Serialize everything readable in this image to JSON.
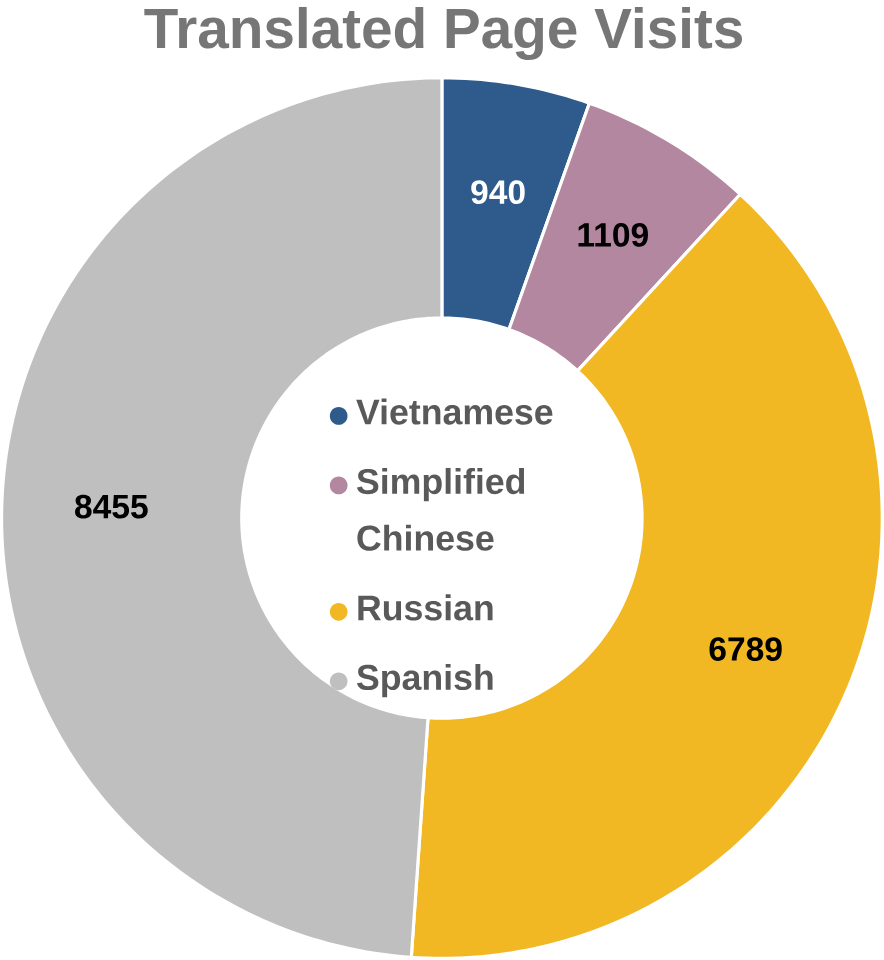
{
  "chart_data": {
    "type": "donut",
    "title": "Translated Page Visits",
    "categories": [
      "Vietnamese",
      "Simplified Chinese",
      "Russian",
      "Spanish"
    ],
    "values": [
      940,
      1109,
      6789,
      8455
    ],
    "colors": [
      "#2e5a8c",
      "#b3879f",
      "#f2b824",
      "#bfbfbf"
    ],
    "data_labels": true,
    "legend": "center"
  }
}
